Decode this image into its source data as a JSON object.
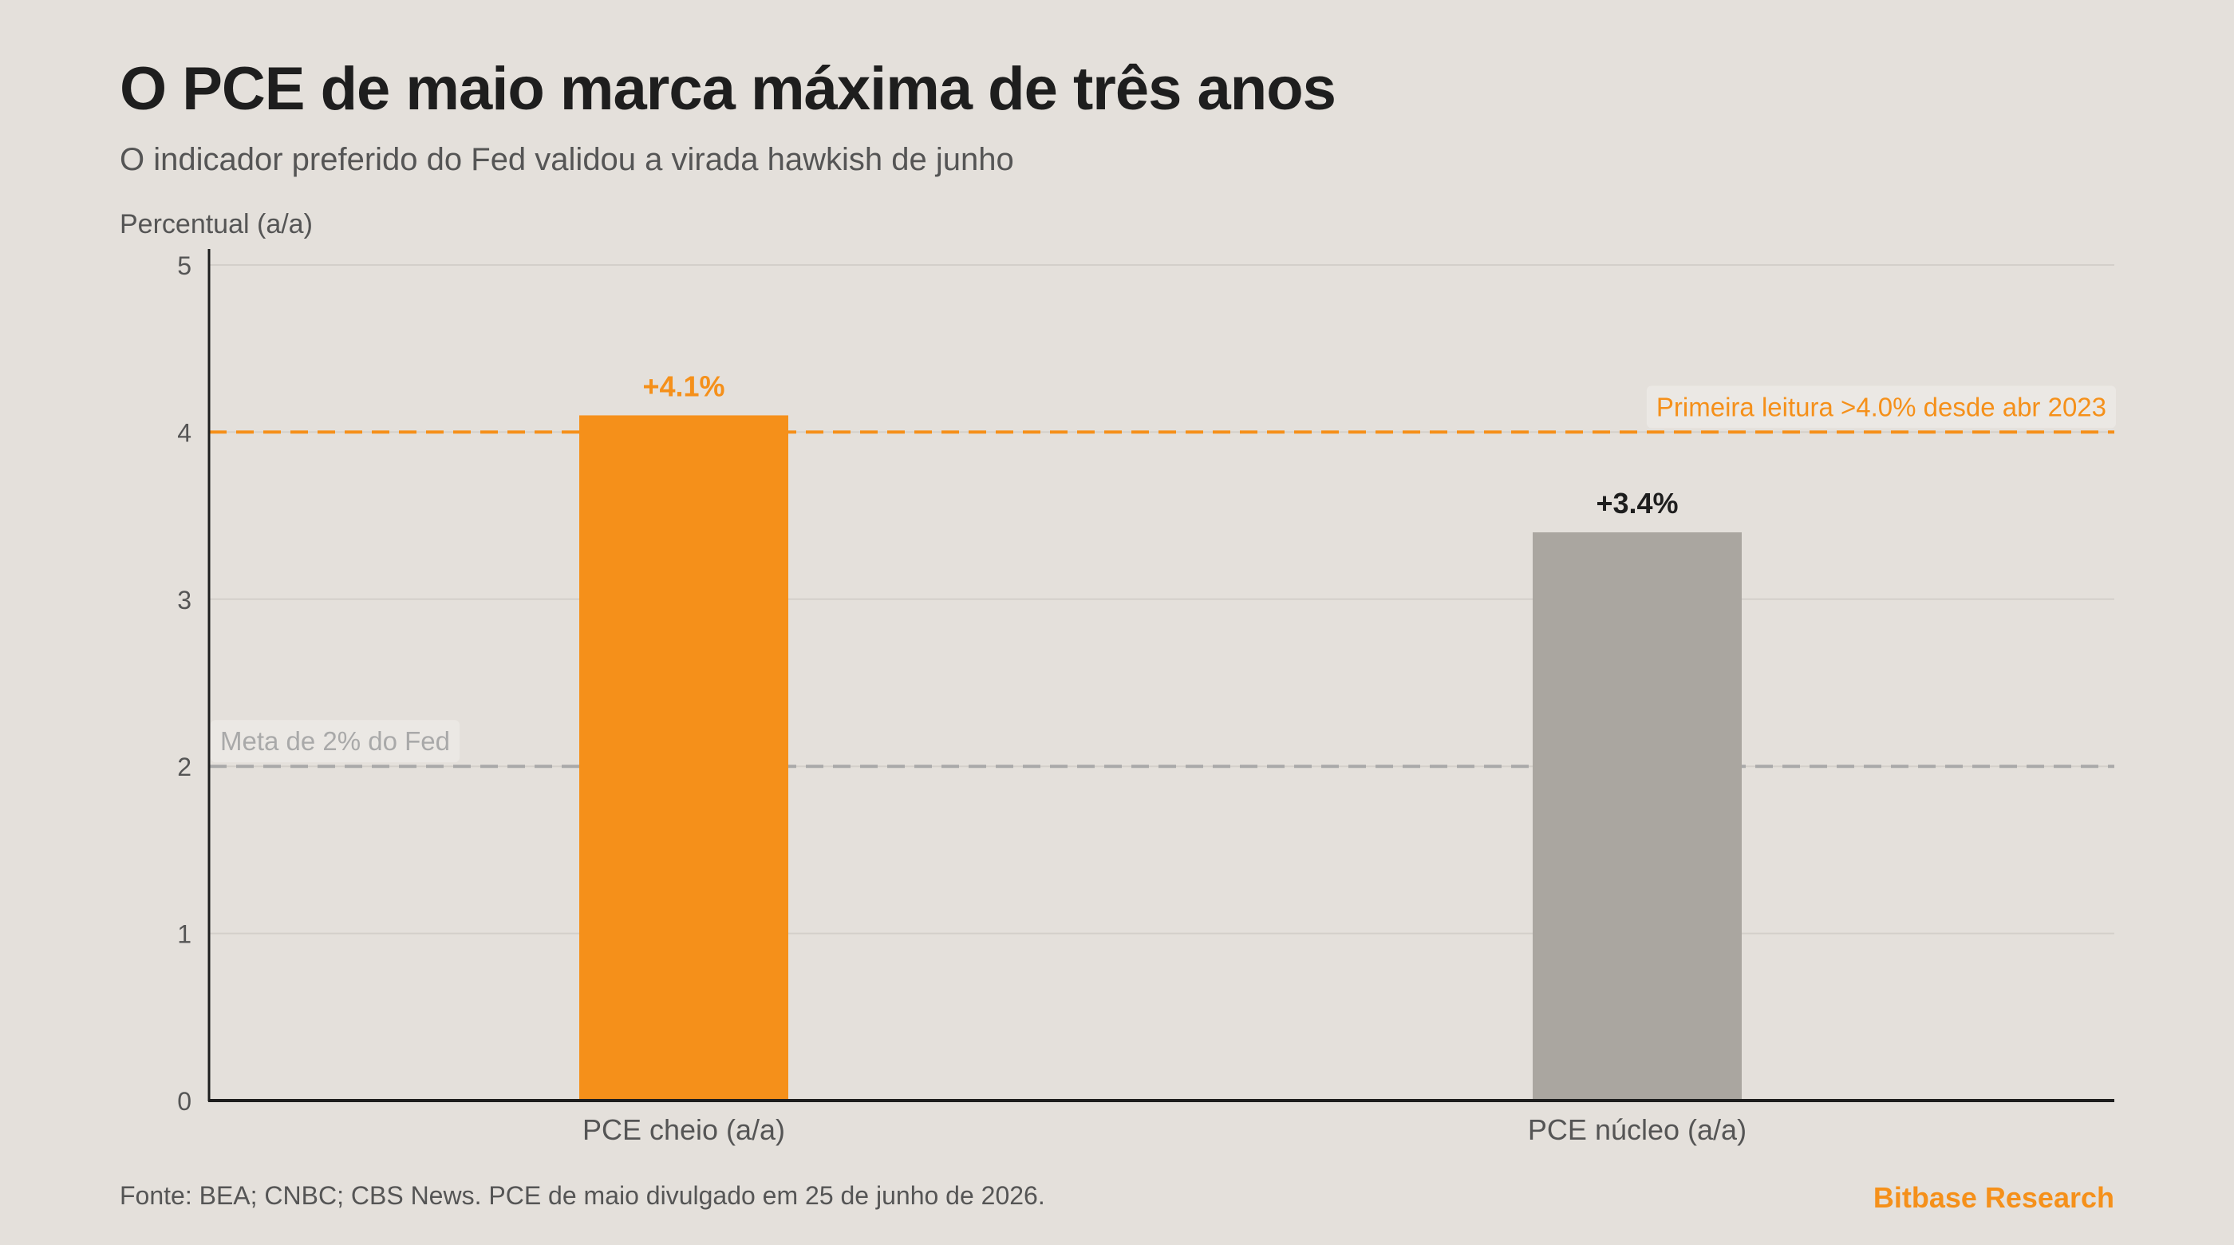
{
  "title": "O PCE de maio marca máxima de três anos",
  "subtitle": "O indicador preferido do Fed validou a virada hawkish de junho",
  "footer": {
    "source": "Fonte: BEA; CNBC; CBS News. PCE de maio divulgado em 25 de junho de 2026.",
    "brand": "Bitbase Research"
  },
  "colors": {
    "accent": "#f5901a",
    "secondary_bar": "#aaa6a0",
    "text_dark": "#1e1e1e",
    "reference_gray": "#a9a9a9",
    "background": "#e4e0db"
  },
  "chart_data": {
    "type": "bar",
    "ylabel": "Percentual (a/a)",
    "ylim": [
      0,
      5
    ],
    "yticks": [
      0,
      1,
      2,
      3,
      4,
      5
    ],
    "grid": true,
    "categories": [
      "PCE cheio (a/a)",
      "PCE núcleo (a/a)"
    ],
    "values": [
      4.1,
      3.4
    ],
    "data_labels": [
      "+4.1%",
      "+3.4%"
    ],
    "bar_colors": [
      "#f5901a",
      "#aaa6a0"
    ],
    "data_label_colors": [
      "#f5901a",
      "#1e1e1e"
    ],
    "reference_lines": [
      {
        "value": 4.0,
        "label": "Primeira leitura >4.0% desde abr 2023",
        "color": "#f5901a",
        "label_position": "right"
      },
      {
        "value": 2.0,
        "label": "Meta de 2% do Fed",
        "color": "#a9a9a9",
        "label_position": "left"
      }
    ]
  }
}
